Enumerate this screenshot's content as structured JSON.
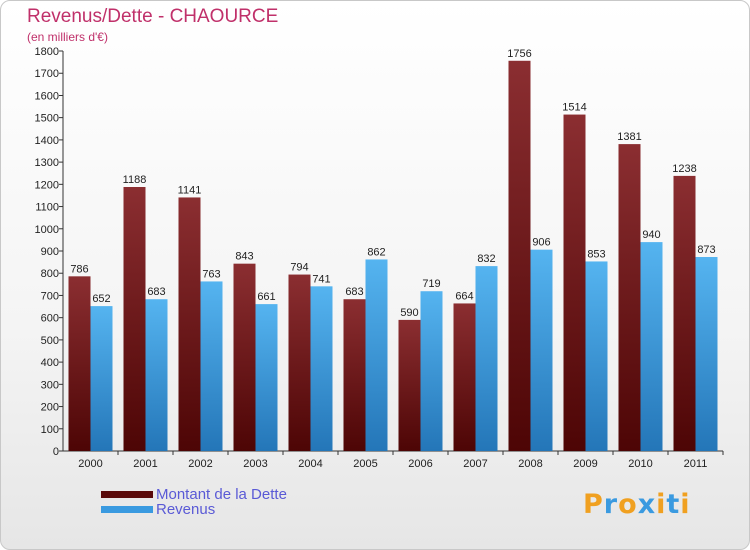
{
  "title": "Revenus/Dette - CHAOURCE",
  "subtitle": "(en milliers d'€)",
  "colors": {
    "dette": "#7a1a1a",
    "revenus": "#3a9ae0",
    "title": "#c0306a",
    "legend_text": "#5a5ad6"
  },
  "legend": [
    {
      "label": "Montant de la Dette",
      "color": "#5a0a0a"
    },
    {
      "label": "Revenus",
      "color": "#3a9ae0"
    }
  ],
  "logo": "Proxiti",
  "chart_data": {
    "type": "bar",
    "title": "Revenus/Dette - CHAOURCE",
    "subtitle": "(en milliers d'€)",
    "categories": [
      "2000",
      "2001",
      "2002",
      "2003",
      "2004",
      "2005",
      "2006",
      "2007",
      "2008",
      "2009",
      "2010",
      "2011"
    ],
    "series": [
      {
        "name": "Montant de la Dette",
        "values": [
          786,
          1188,
          1141,
          843,
          794,
          683,
          590,
          664,
          1756,
          1514,
          1381,
          1238
        ]
      },
      {
        "name": "Revenus",
        "values": [
          652,
          683,
          763,
          661,
          741,
          862,
          719,
          832,
          906,
          853,
          940,
          873
        ]
      }
    ],
    "ylim": [
      0,
      1800
    ],
    "yticks": [
      0,
      100,
      200,
      300,
      400,
      500,
      600,
      700,
      800,
      900,
      1000,
      1100,
      1200,
      1300,
      1400,
      1500,
      1600,
      1700,
      1800
    ],
    "grid": false,
    "legend_position": "bottom-left",
    "xlabel": "",
    "ylabel": ""
  }
}
